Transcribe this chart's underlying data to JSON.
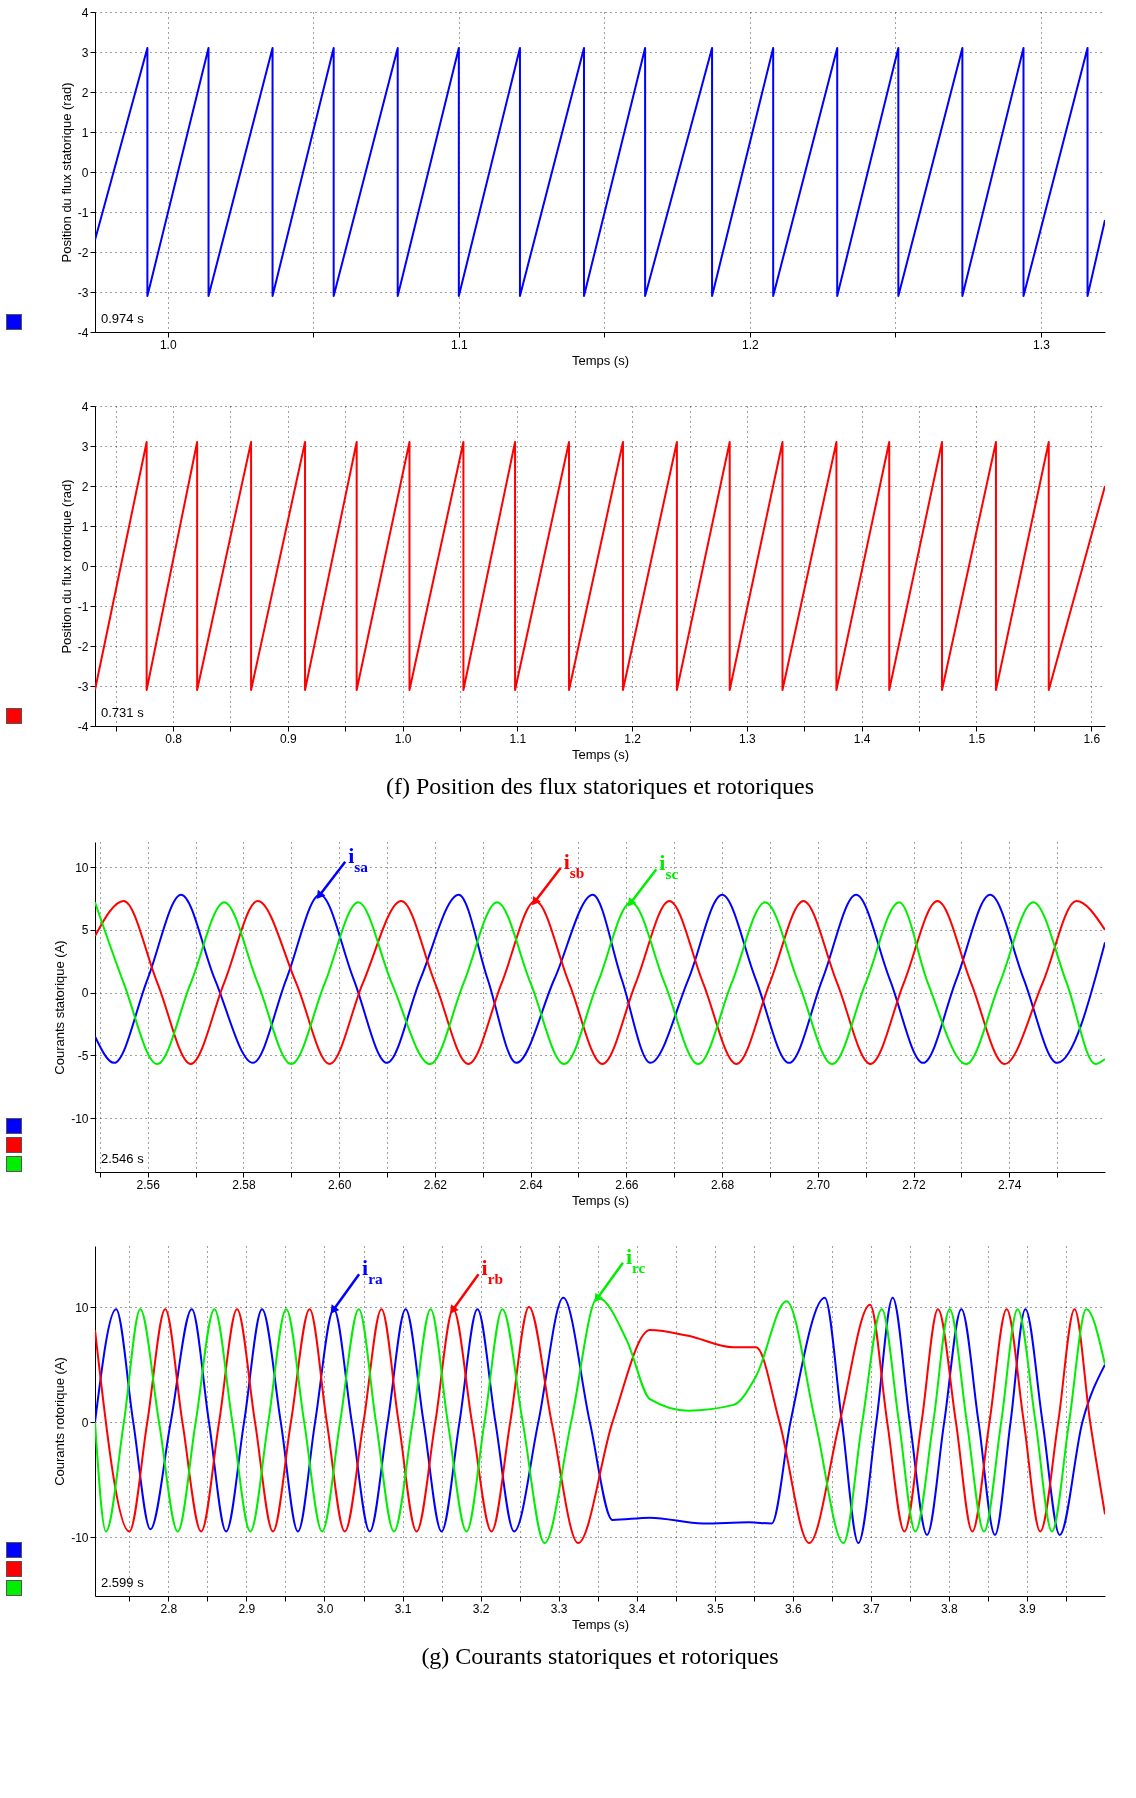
{
  "chart_data": [
    {
      "type": "line",
      "ylabel": "Position du flux statorique (rad)",
      "xlabel": "Temps (s)",
      "annotations": [
        "0.974 s"
      ],
      "xlim": [
        0.975,
        1.322
      ],
      "ylim": [
        -4,
        4
      ],
      "xticks": [
        {
          "value": 1,
          "label": "1.0"
        },
        {
          "value": 1.05,
          "label": null
        },
        1.1,
        {
          "value": 1.15,
          "label": null
        },
        1.2,
        {
          "value": 1.25,
          "label": null
        },
        1.3
      ],
      "yticks": [
        -4,
        -3,
        -2,
        -1,
        0,
        1,
        2,
        3,
        4
      ],
      "grid": true,
      "series": [
        {
          "color": "#0000ff",
          "x": [
            0.975,
            0.993,
            0.993,
            1.014,
            1.014,
            1.036,
            1.036,
            1.057,
            1.057,
            1.079,
            1.079,
            1.1,
            1.1,
            1.121,
            1.121,
            1.143,
            1.143,
            1.164,
            1.164,
            1.187,
            1.187,
            1.208,
            1.208,
            1.23,
            1.23,
            1.251,
            1.251,
            1.273,
            1.273,
            1.294,
            1.294,
            1.316,
            1.316,
            1.322
          ],
          "values": [
            -1.7,
            3.1,
            -3.1,
            3.1,
            -3.1,
            3.1,
            -3.1,
            3.1,
            -3.1,
            3.1,
            -3.1,
            3.1,
            -3.1,
            3.1,
            -3.1,
            3.1,
            -3.1,
            3.1,
            -3.1,
            3.1,
            -3.1,
            3.1,
            -3.1,
            3.1,
            -3.1,
            3.1,
            -3.1,
            3.1,
            -3.1,
            3.1,
            -3.1,
            3.1,
            -3.1,
            -1.2
          ]
        }
      ]
    },
    {
      "type": "line",
      "title": "(f) Position des flux statoriques et rotoriques",
      "ylabel": "Position du flux rotorique (rad)",
      "xlabel": "Temps (s)",
      "annotations": [
        "0.731 s"
      ],
      "xlim": [
        0.732,
        1.612
      ],
      "ylim": [
        -4,
        4
      ],
      "xticks": [
        {
          "value": 0.75,
          "label": null
        },
        0.8,
        {
          "value": 0.85,
          "label": null
        },
        0.9,
        {
          "value": 0.95,
          "label": null
        },
        {
          "value": 1,
          "label": "1.0"
        },
        {
          "value": 1.05,
          "label": null
        },
        1.1,
        {
          "value": 1.15,
          "label": null
        },
        1.2,
        {
          "value": 1.25,
          "label": null
        },
        1.3,
        {
          "value": 1.35,
          "label": null
        },
        1.4,
        {
          "value": 1.45,
          "label": null
        },
        1.5,
        {
          "value": 1.55,
          "label": null
        },
        1.6
      ],
      "yticks": [
        -4,
        -3,
        -2,
        -1,
        0,
        1,
        2,
        3,
        4
      ],
      "grid": true,
      "series": [
        {
          "color": "#ff0000",
          "x": [
            0.732,
            0.777,
            0.777,
            0.821,
            0.821,
            0.868,
            0.868,
            0.915,
            0.915,
            0.96,
            0.96,
            1.006,
            1.006,
            1.053,
            1.053,
            1.098,
            1.098,
            1.145,
            1.145,
            1.192,
            1.192,
            1.239,
            1.239,
            1.285,
            1.285,
            1.331,
            1.331,
            1.378,
            1.378,
            1.424,
            1.424,
            1.47,
            1.47,
            1.517,
            1.517,
            1.563,
            1.563,
            1.612
          ],
          "values": [
            -3.1,
            3.1,
            -3.1,
            3.1,
            -3.1,
            3.1,
            -3.1,
            3.1,
            -3.1,
            3.1,
            -3.1,
            3.1,
            -3.1,
            3.1,
            -3.1,
            3.1,
            -3.1,
            3.1,
            -3.1,
            3.1,
            -3.1,
            3.1,
            -3.1,
            3.1,
            -3.1,
            3.1,
            -3.1,
            3.1,
            -3.1,
            3.1,
            -3.1,
            3.1,
            -3.1,
            3.1,
            -3.1,
            3.1,
            -3.1,
            2.0
          ]
        }
      ]
    },
    {
      "type": "line",
      "ylabel": "Courants statorique (A)",
      "xlabel": "Temps (s)",
      "annotations": [
        "2.546 s"
      ],
      "xlim": [
        2.549,
        2.76
      ],
      "ylim": [
        -14.3,
        12
      ],
      "xticks": [
        {
          "value": 2.55,
          "label": null
        },
        2.56,
        {
          "value": 2.57,
          "label": null
        },
        2.58,
        {
          "value": 2.59,
          "label": null
        },
        {
          "value": 2.6,
          "label": "2.60"
        },
        {
          "value": 2.61,
          "label": null
        },
        2.62,
        {
          "value": 2.63,
          "label": null
        },
        2.64,
        {
          "value": 2.65,
          "label": null
        },
        2.66,
        {
          "value": 2.67,
          "label": null
        },
        2.68,
        {
          "value": 2.69,
          "label": null
        },
        {
          "value": 2.7,
          "label": "2.70"
        },
        {
          "value": 2.71,
          "label": null
        },
        2.72,
        {
          "value": 2.73,
          "label": null
        },
        2.74,
        {
          "value": 2.75,
          "label": null
        }
      ],
      "yticks": [
        -10,
        -5,
        0,
        5,
        10
      ],
      "grid": true,
      "series": [
        {
          "name": "i$_{sa}$",
          "color": "#0000ff",
          "x": [
            2.549,
            2.553,
            2.56,
            2.567,
            2.574,
            2.582,
            2.589,
            2.596,
            2.603,
            2.61,
            2.617,
            2.625,
            2.631,
            2.637,
            2.645,
            2.653,
            2.659,
            2.665,
            2.673,
            2.68,
            2.687,
            2.694,
            2.701,
            2.708,
            2.715,
            2.722,
            2.729,
            2.736,
            2.743,
            2.75,
            2.76
          ],
          "values": [
            -3.5,
            -5.6,
            1.1,
            7.8,
            1.1,
            -5.6,
            1.1,
            7.8,
            1.1,
            -5.6,
            1.1,
            7.8,
            1.1,
            -5.6,
            1.1,
            7.8,
            1.1,
            -5.6,
            1.1,
            7.8,
            1.1,
            -5.6,
            1.1,
            7.8,
            1.1,
            -5.6,
            1.1,
            7.8,
            1.1,
            -5.6,
            4
          ]
        },
        {
          "name": "i$_{sb}$",
          "color": "#ff0000",
          "x": [
            2.549,
            2.555,
            2.562,
            2.569,
            2.576,
            2.583,
            2.591,
            2.598,
            2.605,
            2.613,
            2.62,
            2.627,
            2.634,
            2.641,
            2.648,
            2.655,
            2.662,
            2.669,
            2.676,
            2.683,
            2.69,
            2.697,
            2.704,
            2.711,
            2.718,
            2.725,
            2.732,
            2.739,
            2.747,
            2.754,
            2.76
          ],
          "values": [
            4.5,
            7.3,
            0.8,
            -5.7,
            0.8,
            7.3,
            0.8,
            -5.7,
            0.8,
            7.3,
            0.8,
            -5.7,
            0.8,
            7.3,
            0.8,
            -5.7,
            0.8,
            7.3,
            0.8,
            -5.7,
            0.8,
            7.3,
            0.8,
            -5.7,
            0.8,
            7.3,
            0.8,
            -5.7,
            0.8,
            7.3,
            5
          ]
        },
        {
          "name": "i$_{sc}$",
          "color": "#00ee00",
          "x": [
            2.549,
            2.555,
            2.562,
            2.569,
            2.576,
            2.583,
            2.59,
            2.597,
            2.604,
            2.611,
            2.619,
            2.626,
            2.633,
            2.64,
            2.647,
            2.654,
            2.661,
            2.668,
            2.675,
            2.682,
            2.689,
            2.696,
            2.703,
            2.71,
            2.717,
            2.723,
            2.731,
            2.738,
            2.745,
            2.752,
            2.758,
            2.76
          ],
          "values": [
            7.2,
            0.75,
            -5.7,
            0.75,
            7.2,
            0.75,
            -5.7,
            0.75,
            7.2,
            0.75,
            -5.7,
            0.75,
            7.2,
            0.75,
            -5.7,
            0.75,
            7.2,
            0.75,
            -5.7,
            0.75,
            7.2,
            0.75,
            -5.7,
            0.75,
            7.2,
            0.75,
            -5.7,
            0.75,
            7.2,
            0.75,
            -5.7,
            -5.3
          ]
        }
      ]
    },
    {
      "type": "line",
      "title": "(g) Courants statoriques et rotoriques",
      "ylabel": "Courants rotorique (A)",
      "xlabel": "Temps (s)",
      "annotations": [
        "2.599 s"
      ],
      "xlim": [
        2.706,
        4.0
      ],
      "ylim": [
        -15.1,
        15.3
      ],
      "xticks": [
        {
          "value": 2.75,
          "label": null
        },
        2.8,
        {
          "value": 2.85,
          "label": null
        },
        2.9,
        {
          "value": 2.95,
          "label": null
        },
        {
          "value": 3,
          "label": "3.0"
        },
        {
          "value": 3.05,
          "label": null
        },
        3.1,
        {
          "value": 3.15,
          "label": null
        },
        3.2,
        {
          "value": 3.25,
          "label": null
        },
        3.3,
        {
          "value": 3.35,
          "label": null
        },
        3.4,
        {
          "value": 3.45,
          "label": null
        },
        3.5,
        {
          "value": 3.55,
          "label": null
        },
        3.6,
        {
          "value": 3.65,
          "label": null
        },
        3.7,
        {
          "value": 3.75,
          "label": null
        },
        3.8,
        {
          "value": 3.85,
          "label": null
        },
        3.9,
        {
          "value": 3.95,
          "label": null
        }
      ],
      "yticks": [
        -10,
        0,
        10
      ],
      "grid": true,
      "series": [
        {
          "name": "i$_{ra}$",
          "color": "#0000ff",
          "x": [
            2.706,
            2.733,
            2.755,
            2.777,
            2.803,
            2.83,
            2.852,
            2.874,
            2.897,
            2.92,
            2.944,
            2.966,
            2.988,
            3.012,
            3.035,
            3.058,
            3.081,
            3.104,
            3.127,
            3.15,
            3.173,
            3.196,
            3.219,
            3.243,
            3.274,
            3.306,
            3.34,
            3.369,
            3.417,
            3.485,
            3.544,
            3.573,
            3.597,
            3.641,
            3.663,
            3.684,
            3.707,
            3.728,
            3.75,
            3.772,
            3.794,
            3.816,
            3.838,
            3.859,
            3.879,
            3.898,
            3.92,
            3.942,
            3.971,
            4.0
          ],
          "values": [
            0,
            9.8,
            0,
            -9.3,
            0,
            9.8,
            0,
            -9.5,
            0,
            9.8,
            0,
            -9.5,
            0,
            9.8,
            0,
            -9.5,
            0,
            9.8,
            0,
            -9.5,
            0,
            9.8,
            0,
            -9.5,
            0,
            10.8,
            0,
            -8.5,
            -8.3,
            -8.8,
            -8.7,
            -8.8,
            0,
            10.8,
            0,
            -10.5,
            0,
            10.8,
            0,
            -9.8,
            0,
            9.8,
            0,
            -9.8,
            0,
            9.8,
            0,
            -9.8,
            0,
            5
          ]
        },
        {
          "name": "i$_{rb}$",
          "color": "#ff0000",
          "x": [
            2.706,
            2.75,
            2.773,
            2.796,
            2.818,
            2.842,
            2.865,
            2.888,
            2.911,
            2.934,
            2.957,
            2.981,
            3.003,
            3.026,
            3.05,
            3.073,
            3.095,
            3.118,
            3.142,
            3.165,
            3.189,
            3.214,
            3.238,
            3.262,
            3.291,
            3.325,
            3.369,
            3.417,
            3.466,
            3.524,
            3.553,
            3.583,
            3.621,
            3.66,
            3.699,
            3.721,
            3.743,
            3.765,
            3.786,
            3.809,
            3.83,
            3.852,
            3.874,
            3.896,
            3.917,
            3.94,
            3.961,
            3.981,
            4.0
          ],
          "values": [
            8,
            -9.5,
            0,
            9.8,
            0,
            -9.5,
            0,
            9.8,
            0,
            -9.5,
            0,
            9.8,
            0,
            -9.5,
            0,
            9.8,
            0,
            -9.5,
            0,
            9.8,
            0,
            -9.5,
            0,
            10,
            0,
            -10.5,
            0,
            8,
            7.5,
            6.5,
            6.5,
            0,
            -10.5,
            0,
            10.2,
            0,
            -9.5,
            0,
            9.8,
            0,
            -9.5,
            0,
            9.8,
            0,
            -9.5,
            0,
            9.8,
            0,
            -8
          ]
        },
        {
          "name": "i$_{rc}$",
          "color": "#00ee00",
          "x": [
            2.706,
            2.72,
            2.743,
            2.764,
            2.788,
            2.812,
            2.835,
            2.859,
            2.882,
            2.905,
            2.928,
            2.951,
            2.974,
            2.997,
            3.02,
            3.044,
            3.066,
            3.089,
            3.113,
            3.136,
            3.158,
            3.182,
            3.205,
            3.228,
            3.254,
            3.282,
            3.316,
            3.35,
            3.388,
            3.417,
            3.466,
            3.524,
            3.553,
            3.592,
            3.629,
            3.665,
            3.689,
            3.714,
            3.736,
            3.757,
            3.78,
            3.801,
            3.823,
            3.845,
            3.867,
            3.888,
            3.911,
            3.932,
            3.954,
            3.976,
            4.0
          ],
          "values": [
            0,
            -9.5,
            0,
            9.8,
            0,
            -9.5,
            0,
            9.8,
            0,
            -9.5,
            0,
            9.8,
            0,
            -9.5,
            0,
            9.8,
            0,
            -9.5,
            0,
            9.8,
            0,
            -9.5,
            0,
            9.8,
            0,
            -10.5,
            0,
            10.8,
            7,
            2,
            1,
            1.5,
            4,
            10.5,
            0,
            -10.5,
            0,
            9.8,
            0,
            -9.5,
            0,
            9.8,
            0,
            -9.5,
            0,
            9.8,
            0,
            -9.5,
            0,
            9.8,
            5
          ]
        }
      ]
    }
  ]
}
